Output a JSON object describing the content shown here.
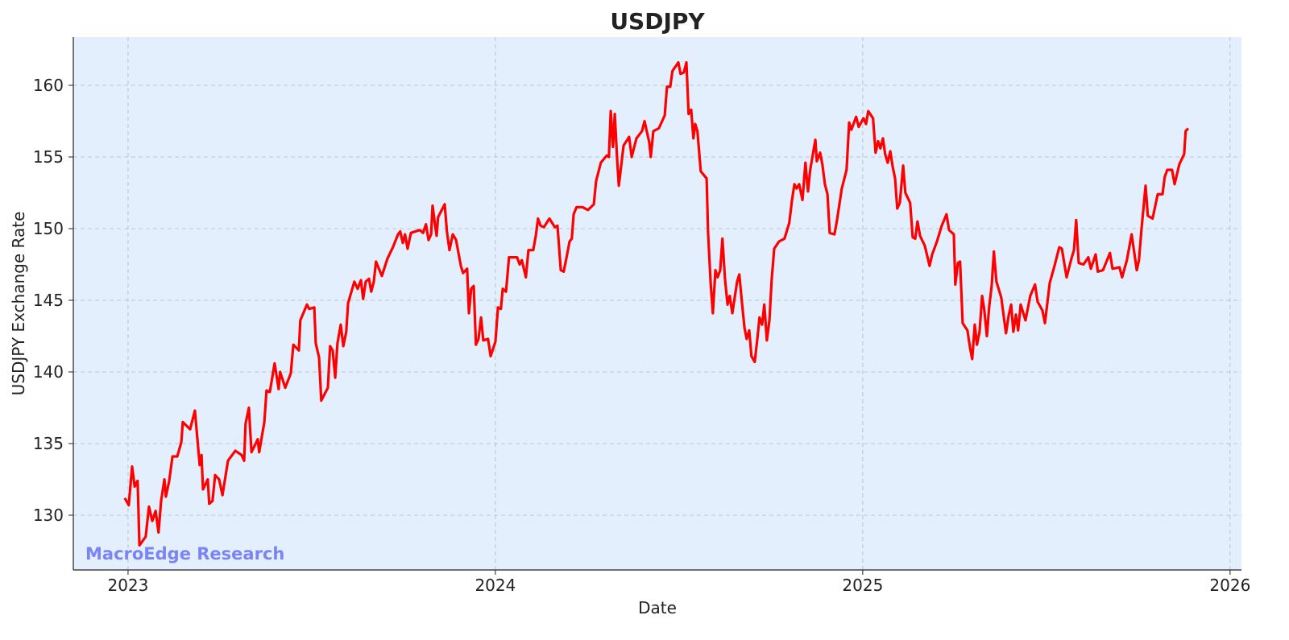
{
  "chart_data": {
    "type": "line",
    "title": "USDJPY",
    "x_label": "Date",
    "y_label": "USDJPY Exchange Rate",
    "annotation": "MacroEdge Research",
    "xlim": [
      2022.851,
      2026.031
    ],
    "xticks": [
      2023,
      2024,
      2025,
      2026
    ],
    "ylim": [
      126.18,
      163.37
    ],
    "yticks": [
      130,
      135,
      140,
      145,
      150,
      155,
      160
    ],
    "grid": true,
    "background": "#e3effd",
    "series": [
      {
        "name": "USDJPY",
        "color": "#ff0000",
        "x": [
          2022.991,
          2023.002,
          2023.011,
          2023.018,
          2023.026,
          2023.031,
          2023.048,
          2023.057,
          2023.066,
          2023.075,
          2023.083,
          2023.09,
          2023.099,
          2023.103,
          2023.112,
          2023.121,
          2023.134,
          2023.145,
          2023.149,
          2023.169,
          2023.182,
          2023.195,
          2023.2,
          2023.204,
          2023.217,
          2023.221,
          2023.23,
          2023.237,
          2023.248,
          2023.257,
          2023.272,
          2023.292,
          2023.309,
          2023.316,
          2023.32,
          2023.329,
          2023.336,
          2023.353,
          2023.357,
          2023.371,
          2023.377,
          2023.386,
          2023.399,
          2023.41,
          2023.414,
          2023.428,
          2023.443,
          2023.45,
          2023.465,
          2023.469,
          2023.487,
          2023.493,
          2023.507,
          2023.511,
          2023.52,
          2023.526,
          2023.544,
          2023.55,
          2023.557,
          2023.564,
          2023.57,
          2023.579,
          2023.586,
          2023.594,
          2023.599,
          2023.616,
          2023.625,
          2023.634,
          2023.64,
          2023.647,
          2023.656,
          2023.662,
          2023.669,
          2023.675,
          2023.691,
          2023.706,
          2023.721,
          2023.735,
          2023.741,
          2023.748,
          2023.754,
          2023.761,
          2023.77,
          2023.794,
          2023.803,
          2023.811,
          2023.818,
          2023.825,
          2023.829,
          2023.836,
          2023.84,
          2023.844,
          2023.862,
          2023.868,
          2023.875,
          2023.884,
          2023.893,
          2023.906,
          2023.912,
          2023.923,
          2023.928,
          2023.934,
          2023.941,
          2023.947,
          2023.954,
          2023.961,
          2023.967,
          2023.98,
          2023.987,
          2024.0,
          2024.007,
          2024.015,
          2024.02,
          2024.029,
          2024.037,
          2024.059,
          2024.066,
          2024.072,
          2024.083,
          2024.09,
          2024.103,
          2024.11,
          2024.116,
          2024.123,
          2024.132,
          2024.147,
          2024.162,
          2024.169,
          2024.178,
          2024.186,
          2024.193,
          2024.202,
          2024.208,
          2024.213,
          2024.221,
          2024.237,
          2024.252,
          2024.268,
          2024.274,
          2024.287,
          2024.303,
          2024.309,
          2024.314,
          2024.32,
          2024.325,
          2024.331,
          2024.336,
          2024.349,
          2024.364,
          2024.371,
          2024.384,
          2024.399,
          2024.406,
          2024.419,
          2024.423,
          2024.43,
          2024.445,
          2024.461,
          2024.467,
          2024.476,
          2024.482,
          2024.498,
          2024.504,
          2024.513,
          2024.52,
          2024.526,
          2024.533,
          2024.539,
          2024.544,
          2024.55,
          2024.559,
          2024.575,
          2024.579,
          2024.586,
          2024.592,
          2024.599,
          2024.605,
          2024.612,
          2024.618,
          2024.625,
          2024.632,
          2024.638,
          2024.645,
          2024.658,
          2024.664,
          2024.671,
          2024.678,
          2024.684,
          2024.691,
          2024.697,
          2024.706,
          2024.713,
          2024.719,
          2024.726,
          2024.732,
          2024.739,
          2024.746,
          2024.752,
          2024.759,
          2024.772,
          2024.787,
          2024.8,
          2024.807,
          2024.814,
          2024.82,
          2024.827,
          2024.836,
          2024.844,
          2024.851,
          2024.857,
          2024.871,
          2024.875,
          2024.884,
          2024.89,
          2024.897,
          2024.904,
          2024.91,
          2024.923,
          2024.93,
          2024.943,
          2024.956,
          2024.963,
          2024.969,
          2024.982,
          2024.989,
          2025.002,
          2025.009,
          2025.015,
          2025.028,
          2025.035,
          2025.042,
          2025.048,
          2025.055,
          2025.061,
          2025.068,
          2025.075,
          2025.081,
          2025.088,
          2025.094,
          2025.101,
          2025.11,
          2025.116,
          2025.129,
          2025.136,
          2025.143,
          2025.149,
          2025.156,
          2025.169,
          2025.182,
          2025.189,
          2025.202,
          2025.215,
          2025.228,
          2025.235,
          2025.248,
          2025.252,
          2025.259,
          2025.265,
          2025.272,
          2025.285,
          2025.292,
          2025.298,
          2025.305,
          2025.311,
          2025.318,
          2025.325,
          2025.331,
          2025.338,
          2025.344,
          2025.351,
          2025.357,
          2025.364,
          2025.377,
          2025.39,
          2025.397,
          2025.404,
          2025.41,
          2025.417,
          2025.423,
          2025.43,
          2025.443,
          2025.456,
          2025.469,
          2025.476,
          2025.489,
          2025.496,
          2025.509,
          2025.522,
          2025.535,
          2025.542,
          2025.555,
          2025.568,
          2025.575,
          2025.581,
          2025.588,
          2025.601,
          2025.614,
          2025.621,
          2025.634,
          2025.64,
          2025.654,
          2025.673,
          2025.68,
          2025.699,
          2025.706,
          2025.719,
          2025.732,
          2025.746,
          2025.752,
          2025.759,
          2025.77,
          2025.776,
          2025.789,
          2025.803,
          2025.816,
          2025.822,
          2025.829,
          2025.842,
          2025.849,
          2025.862,
          2025.875,
          2025.879,
          2025.886
        ],
        "values": [
          131.2,
          130.7,
          133.4,
          132.0,
          132.4,
          127.9,
          128.5,
          130.6,
          129.6,
          130.3,
          128.8,
          131.0,
          132.5,
          131.3,
          132.4,
          134.1,
          134.1,
          135.1,
          136.5,
          136.0,
          137.3,
          133.5,
          134.2,
          131.8,
          132.5,
          130.8,
          131.0,
          132.8,
          132.5,
          131.4,
          133.8,
          134.5,
          134.2,
          133.8,
          136.4,
          137.5,
          134.4,
          135.3,
          134.4,
          136.5,
          138.7,
          138.6,
          140.6,
          138.8,
          140.0,
          138.9,
          139.9,
          141.9,
          141.5,
          143.6,
          144.7,
          144.4,
          144.5,
          142.0,
          141.0,
          138.0,
          138.9,
          141.8,
          141.5,
          139.6,
          142.0,
          143.3,
          141.8,
          142.8,
          144.8,
          146.3,
          145.8,
          146.4,
          145.1,
          146.3,
          146.5,
          145.6,
          146.3,
          147.7,
          146.7,
          147.9,
          148.7,
          149.6,
          149.8,
          149.0,
          149.6,
          148.6,
          149.7,
          149.9,
          149.7,
          150.3,
          149.2,
          149.6,
          151.6,
          150.2,
          149.5,
          150.8,
          151.7,
          149.8,
          148.5,
          149.6,
          149.2,
          147.4,
          146.9,
          147.2,
          144.1,
          145.8,
          146.0,
          141.9,
          142.3,
          143.8,
          142.2,
          142.3,
          141.1,
          142.1,
          144.5,
          144.4,
          145.8,
          145.6,
          148.0,
          148.0,
          147.5,
          147.8,
          146.6,
          148.5,
          148.5,
          149.5,
          150.7,
          150.2,
          150.1,
          150.7,
          150.1,
          150.2,
          147.1,
          147.0,
          147.9,
          149.1,
          149.3,
          151.0,
          151.5,
          151.5,
          151.3,
          151.7,
          153.3,
          154.6,
          155.1,
          155.0,
          158.2,
          155.7,
          158.0,
          155.0,
          153.0,
          155.8,
          156.4,
          155.0,
          156.3,
          156.8,
          157.5,
          156.0,
          155.0,
          156.8,
          157.0,
          157.9,
          159.9,
          159.9,
          161.0,
          161.6,
          160.8,
          160.9,
          161.6,
          158.0,
          158.3,
          156.3,
          157.3,
          156.8,
          154.0,
          153.5,
          149.7,
          146.2,
          144.1,
          147.1,
          146.6,
          147.1,
          149.3,
          146.5,
          144.7,
          145.3,
          144.1,
          146.3,
          146.8,
          144.9,
          143.1,
          142.3,
          142.9,
          141.1,
          140.7,
          142.3,
          143.8,
          143.3,
          144.7,
          142.2,
          143.6,
          146.4,
          148.6,
          149.1,
          149.3,
          150.4,
          151.9,
          153.1,
          152.8,
          153.1,
          152.0,
          154.6,
          152.6,
          154.1,
          156.2,
          154.7,
          155.3,
          154.5,
          153.1,
          152.4,
          149.7,
          149.6,
          150.6,
          152.8,
          154.1,
          157.4,
          156.9,
          157.8,
          157.1,
          157.7,
          157.3,
          158.2,
          157.7,
          155.3,
          156.1,
          155.6,
          156.3,
          155.2,
          154.6,
          155.4,
          154.4,
          153.5,
          151.4,
          151.8,
          154.4,
          152.5,
          151.8,
          149.4,
          149.3,
          150.5,
          149.5,
          148.8,
          147.4,
          148.2,
          149.1,
          150.2,
          151.0,
          149.9,
          149.6,
          146.1,
          147.6,
          147.7,
          143.4,
          142.9,
          141.7,
          140.9,
          143.3,
          141.9,
          142.8,
          145.3,
          144.3,
          142.5,
          144.5,
          146.0,
          148.4,
          146.3,
          145.2,
          142.7,
          143.9,
          144.7,
          142.8,
          144.0,
          142.9,
          144.7,
          143.6,
          145.3,
          146.1,
          144.9,
          144.3,
          143.4,
          146.2,
          147.4,
          148.7,
          148.6,
          146.6,
          147.9,
          148.5,
          150.6,
          147.6,
          147.5,
          148.0,
          147.2,
          148.2,
          147.0,
          147.1,
          148.3,
          147.2,
          147.3,
          146.6,
          147.8,
          149.6,
          147.1,
          147.8,
          150.0,
          153.0,
          150.9,
          150.7,
          152.4,
          152.4,
          153.6,
          154.1,
          154.1,
          153.1,
          154.5,
          155.2,
          156.8,
          157.0
        ]
      }
    ]
  }
}
